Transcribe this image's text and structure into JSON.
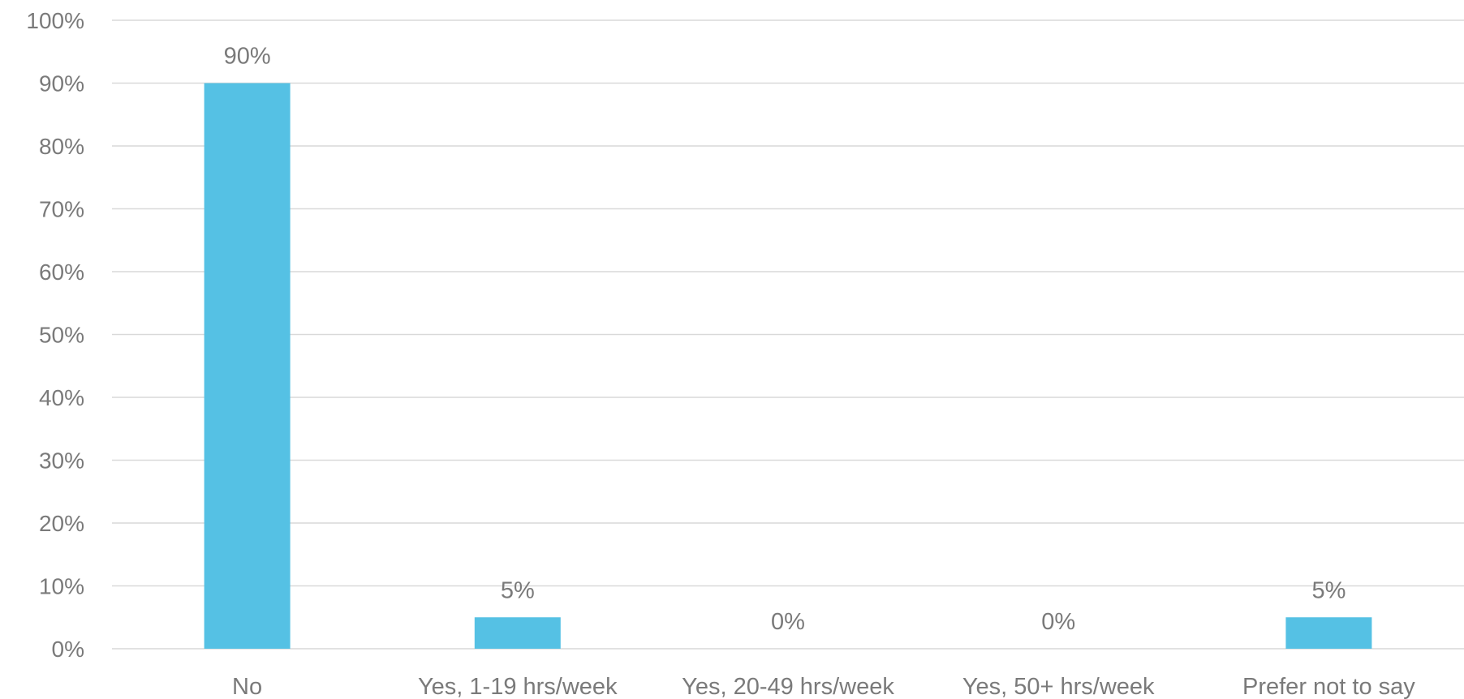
{
  "chart_data": {
    "type": "bar",
    "categories": [
      "No",
      "Yes, 1-19 hrs/week",
      "Yes, 20-49 hrs/week",
      "Yes, 50+ hrs/week",
      "Prefer not to say"
    ],
    "values": [
      90,
      5,
      0,
      0,
      5
    ],
    "data_labels": [
      "90%",
      "5%",
      "0%",
      "0%",
      "5%"
    ],
    "y_ticks": [
      "0%",
      "10%",
      "20%",
      "30%",
      "40%",
      "50%",
      "60%",
      "70%",
      "80%",
      "90%",
      "100%"
    ],
    "ylim": [
      0,
      100
    ],
    "y_unit": "%",
    "grid": true,
    "legend": "none",
    "title": "",
    "xlabel": "",
    "ylabel": "",
    "colors": {
      "bar": "#55c1e4",
      "grid": "#d9d9d9",
      "text": "#7a7a7a"
    }
  }
}
